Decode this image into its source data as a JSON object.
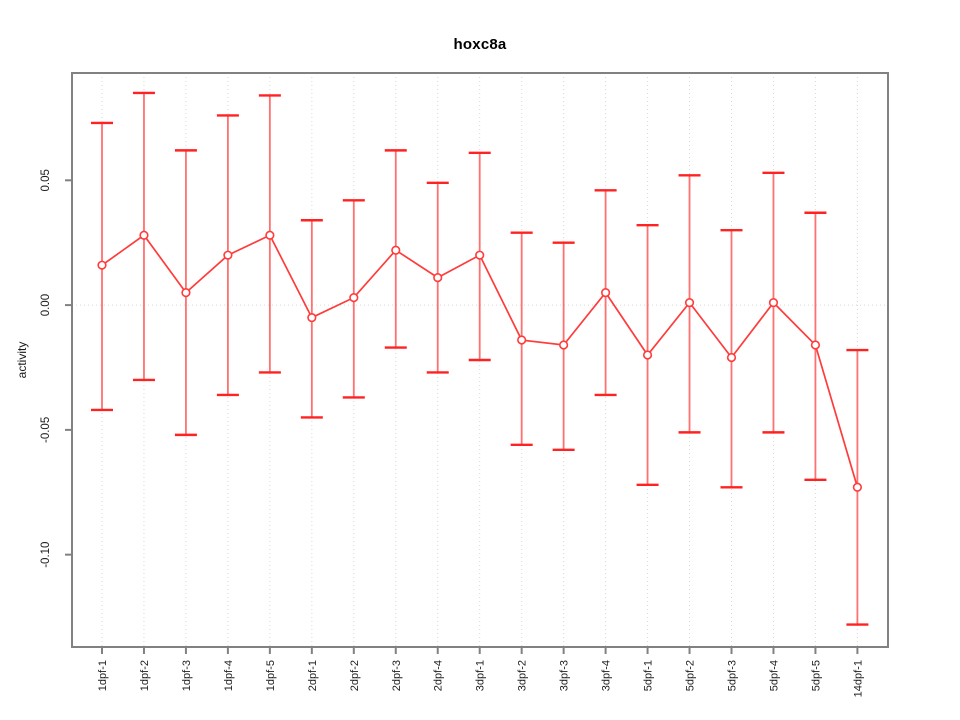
{
  "chart_data": {
    "type": "line",
    "title": "hoxc8a",
    "xlabel": "",
    "ylabel": "activity",
    "categories": [
      "1dpf-1",
      "1dpf-2",
      "1dpf-3",
      "1dpf-4",
      "1dpf-5",
      "2dpf-1",
      "2dpf-2",
      "2dpf-3",
      "2dpf-4",
      "3dpf-1",
      "3dpf-2",
      "3dpf-3",
      "3dpf-4",
      "5dpf-1",
      "5dpf-2",
      "5dpf-3",
      "5dpf-4",
      "5dpf-5",
      "14dpf-1"
    ],
    "series": [
      {
        "name": "activity",
        "values": [
          0.016,
          0.028,
          0.005,
          0.02,
          0.028,
          -0.005,
          0.003,
          0.022,
          0.011,
          0.02,
          -0.014,
          -0.016,
          0.005,
          -0.02,
          0.001,
          -0.021,
          0.001,
          -0.016,
          -0.073
        ],
        "error_high": [
          0.073,
          0.085,
          0.062,
          0.076,
          0.084,
          0.034,
          0.042,
          0.062,
          0.049,
          0.061,
          0.029,
          0.025,
          0.046,
          0.032,
          0.052,
          0.03,
          0.053,
          0.037,
          -0.018
        ],
        "error_low": [
          -0.042,
          -0.03,
          -0.052,
          -0.036,
          -0.027,
          -0.045,
          -0.037,
          -0.017,
          -0.027,
          -0.022,
          -0.056,
          -0.058,
          -0.036,
          -0.072,
          -0.051,
          -0.073,
          -0.051,
          -0.07,
          -0.128
        ]
      }
    ],
    "yticks": [
      {
        "label": "0.05",
        "value": 0.05
      },
      {
        "label": "0.00",
        "value": 0.0
      },
      {
        "label": "-0.05",
        "value": -0.05
      },
      {
        "label": "-0.10",
        "value": -0.1
      }
    ],
    "ylim": [
      -0.137,
      0.093
    ],
    "grid": {
      "vertical": "dotted at every category",
      "horizontal": "dotted at 0 only"
    },
    "legend": "none",
    "marker": "open-circle",
    "colors": {
      "series_line": "#ff3b3b",
      "error_bar": "#ff7070",
      "error_cap": "#ff2222",
      "marker_stroke": "#ff3b3b",
      "marker_fill": "#ffffff",
      "grid": "#d9d9d9",
      "axis_box": "#818181",
      "tick_text": "#1f1f1f",
      "title_text": "#000000"
    }
  }
}
